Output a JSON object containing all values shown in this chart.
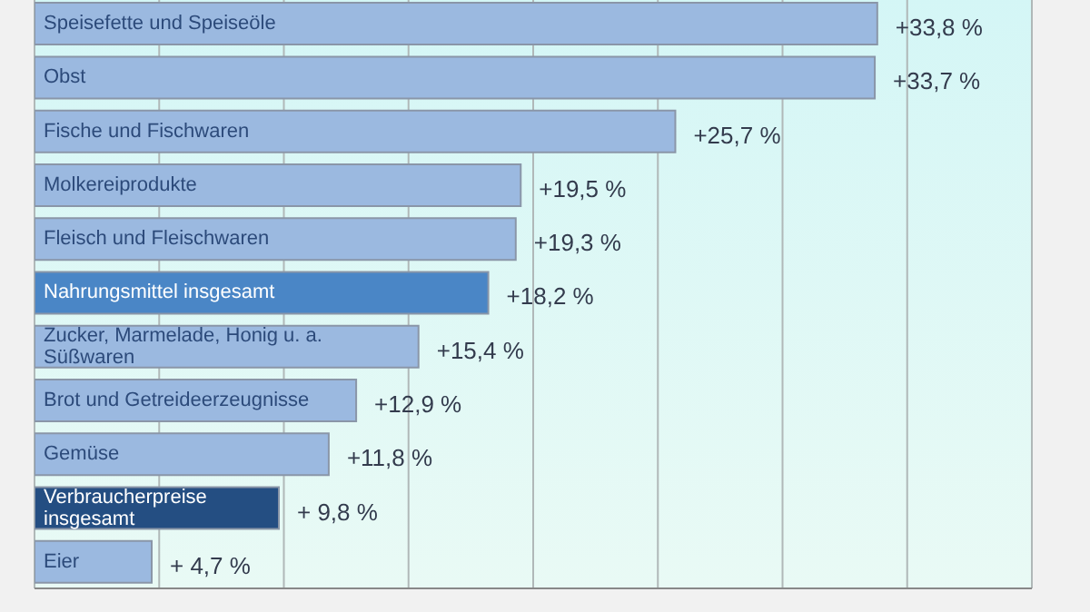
{
  "chart_data": {
    "type": "bar",
    "orientation": "horizontal",
    "categories": [
      "Speisefette und Speiseöle",
      "Obst",
      "Fische und Fischwaren",
      "Molkereiprodukte",
      "Fleisch und Fleischwaren",
      "Nahrungsmittel insgesamt",
      "Zucker, Marmelade, Honig u. a. Süßwaren",
      "Brot und Getreideerzeugnisse",
      "Gemüse",
      "Verbraucherpreise insgesamt",
      "Eier"
    ],
    "values": [
      33.8,
      33.7,
      25.7,
      19.5,
      19.3,
      18.2,
      15.4,
      12.9,
      11.8,
      9.8,
      4.7
    ],
    "colors": [
      "#9bb9e0",
      "#9bb9e0",
      "#9bb9e0",
      "#9bb9e0",
      "#9bb9e0",
      "#4a86c6",
      "#9bb9e0",
      "#9bb9e0",
      "#9bb9e0",
      "#244e82",
      "#9bb9e0"
    ],
    "value_labels": [
      "+33,8 %",
      "+33,7 %",
      "+25,7 %",
      "+19,5 %",
      "+19,3 %",
      "+18,2 %",
      "+15,4 %",
      "+12,9 %",
      "+11,8 %",
      "+ 9,8 %",
      "+ 4,7 %"
    ],
    "xlim": [
      0,
      40
    ],
    "xticks": [
      {
        "value": 0,
        "label": null
      },
      {
        "value": 5,
        "label": null
      },
      {
        "value": 10,
        "label": null
      },
      {
        "value": 15,
        "label": null
      },
      {
        "value": 20,
        "label": null
      },
      {
        "value": 25,
        "label": null
      },
      {
        "value": 30,
        "label": null
      },
      {
        "value": 35,
        "label": null
      },
      {
        "value": 40,
        "label": null
      }
    ],
    "grid": "x"
  }
}
